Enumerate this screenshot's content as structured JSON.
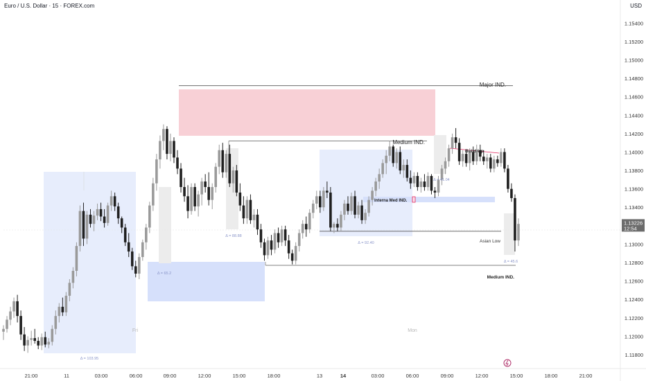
{
  "header": {
    "symbol_title": "Euro / U.S. Dollar · 15 · FOREX.com",
    "currency": "USD"
  },
  "price_badge": {
    "price": "1.13226",
    "countdown": "12:54"
  },
  "colors": {
    "bull": "#9a9a9a",
    "bear": "#202020",
    "zone_red": "#f8d0d6",
    "zone_blue": "#d6e0fb",
    "zone_blue_light": "#e7edfc",
    "zone_grey": "#ececec",
    "badge_bg": "#6b6b6b"
  },
  "chart_data": {
    "type": "candlestick",
    "x_tick_labels": [
      "21:00",
      "11",
      "03:00",
      "06:00",
      "09:00",
      "12:00",
      "15:00",
      "18:00",
      "13",
      "14",
      "03:00",
      "06:00",
      "09:00",
      "12:00",
      "15:00",
      "18:00",
      "21:00"
    ],
    "y_ticks": [
      1.154,
      1.152,
      1.15,
      1.148,
      1.146,
      1.144,
      1.142,
      1.14,
      1.138,
      1.136,
      1.134,
      1.13,
      1.128,
      1.126,
      1.124,
      1.122,
      1.12,
      1.118
    ],
    "ylim": [
      1.1174,
      1.1556
    ],
    "session_labels": [
      "Fri",
      "Mon"
    ],
    "levels": [
      {
        "name": "Major IND.",
        "price": 1.1472
      },
      {
        "name": "Medium IND.",
        "price": 1.1412
      },
      {
        "name": "Asian Low",
        "price": 1.1314
      },
      {
        "name": "Medium IND.",
        "price": 1.1277
      }
    ],
    "annotations": [
      "Interna Med IND.",
      "Build Up"
    ],
    "range_labels": [
      "Δ = 103.95",
      "Δ = 65.2",
      "Δ = 88.88",
      "Δ = 92.40",
      "Δ = 41.04",
      "Δ = 45.6"
    ],
    "candles": [
      [
        1.1205,
        1.1212,
        1.1196,
        1.1208
      ],
      [
        1.1208,
        1.1222,
        1.1204,
        1.1218
      ],
      [
        1.1218,
        1.1232,
        1.1212,
        1.1227
      ],
      [
        1.1227,
        1.1242,
        1.122,
        1.1238
      ],
      [
        1.1238,
        1.1245,
        1.1215,
        1.1222
      ],
      [
        1.1222,
        1.1228,
        1.1196,
        1.1202
      ],
      [
        1.1202,
        1.121,
        1.1184,
        1.119
      ],
      [
        1.119,
        1.12,
        1.1182,
        1.1196
      ],
      [
        1.1196,
        1.1206,
        1.119,
        1.1198
      ],
      [
        1.1198,
        1.1208,
        1.1192,
        1.1195
      ],
      [
        1.1195,
        1.1199,
        1.1186,
        1.119
      ],
      [
        1.119,
        1.1203,
        1.1185,
        1.1199
      ],
      [
        1.1199,
        1.1205,
        1.1188,
        1.1191
      ],
      [
        1.1191,
        1.1198,
        1.1187,
        1.1194
      ],
      [
        1.1194,
        1.1212,
        1.119,
        1.1208
      ],
      [
        1.1208,
        1.1228,
        1.1202,
        1.1222
      ],
      [
        1.1222,
        1.1236,
        1.1215,
        1.1232
      ],
      [
        1.1232,
        1.1242,
        1.1222,
        1.1226
      ],
      [
        1.1226,
        1.1248,
        1.1222,
        1.1244
      ],
      [
        1.1244,
        1.1262,
        1.1238,
        1.1258
      ],
      [
        1.1258,
        1.1275,
        1.1252,
        1.1271
      ],
      [
        1.1271,
        1.1302,
        1.1265,
        1.1298
      ],
      [
        1.1298,
        1.1342,
        1.1292,
        1.1336
      ],
      [
        1.1336,
        1.1345,
        1.1298,
        1.1306
      ],
      [
        1.1306,
        1.1336,
        1.13,
        1.1332
      ],
      [
        1.1332,
        1.1338,
        1.1318,
        1.1322
      ],
      [
        1.1322,
        1.1336,
        1.1314,
        1.1331
      ],
      [
        1.1331,
        1.1344,
        1.1326,
        1.1338
      ],
      [
        1.1338,
        1.1345,
        1.1325,
        1.133
      ],
      [
        1.133,
        1.1338,
        1.1318,
        1.1323
      ],
      [
        1.1323,
        1.1345,
        1.132,
        1.1342
      ],
      [
        1.1342,
        1.1358,
        1.1336,
        1.1352
      ],
      [
        1.1352,
        1.1356,
        1.1336,
        1.1341
      ],
      [
        1.1341,
        1.1345,
        1.1322,
        1.1328
      ],
      [
        1.1328,
        1.133,
        1.1312,
        1.1318
      ],
      [
        1.1318,
        1.1322,
        1.1298,
        1.1302
      ],
      [
        1.1302,
        1.1312,
        1.1286,
        1.1292
      ],
      [
        1.1292,
        1.1296,
        1.1272,
        1.1276
      ],
      [
        1.1276,
        1.1282,
        1.1264,
        1.1268
      ],
      [
        1.1268,
        1.129,
        1.1262,
        1.1286
      ],
      [
        1.1286,
        1.1305,
        1.1282,
        1.1302
      ],
      [
        1.1302,
        1.1322,
        1.1294,
        1.1318
      ],
      [
        1.1318,
        1.1346,
        1.1312,
        1.1342
      ],
      [
        1.1342,
        1.1372,
        1.1336,
        1.1366
      ],
      [
        1.1366,
        1.1398,
        1.1358,
        1.1392
      ],
      [
        1.1392,
        1.1418,
        1.1382,
        1.1412
      ],
      [
        1.1412,
        1.143,
        1.1402,
        1.1425
      ],
      [
        1.1425,
        1.1428,
        1.1392,
        1.1398
      ],
      [
        1.1398,
        1.142,
        1.139,
        1.1412
      ],
      [
        1.1412,
        1.1416,
        1.1388,
        1.1394
      ],
      [
        1.1394,
        1.1402,
        1.1376,
        1.1382
      ],
      [
        1.1382,
        1.1388,
        1.1356,
        1.1362
      ],
      [
        1.1362,
        1.1372,
        1.1346,
        1.1352
      ],
      [
        1.1352,
        1.1364,
        1.1328,
        1.1336
      ],
      [
        1.1336,
        1.1366,
        1.1332,
        1.1362
      ],
      [
        1.1362,
        1.1366,
        1.1336,
        1.1341
      ],
      [
        1.1341,
        1.1358,
        1.133,
        1.1354
      ],
      [
        1.1354,
        1.1372,
        1.1342,
        1.1368
      ],
      [
        1.1368,
        1.1376,
        1.1356,
        1.1362
      ],
      [
        1.1362,
        1.1378,
        1.1342,
        1.1348
      ],
      [
        1.1348,
        1.1366,
        1.1338,
        1.1362
      ],
      [
        1.1362,
        1.1388,
        1.1356,
        1.1384
      ],
      [
        1.1384,
        1.1408,
        1.1376,
        1.1402
      ],
      [
        1.1402,
        1.141,
        1.1372,
        1.1378
      ],
      [
        1.1378,
        1.1402,
        1.1372,
        1.1398
      ],
      [
        1.1398,
        1.1408,
        1.1362,
        1.1366
      ],
      [
        1.1366,
        1.1384,
        1.1356,
        1.138
      ],
      [
        1.138,
        1.1386,
        1.1352,
        1.1356
      ],
      [
        1.1356,
        1.1366,
        1.1336,
        1.1342
      ],
      [
        1.1342,
        1.1352,
        1.1322,
        1.1328
      ],
      [
        1.1328,
        1.1352,
        1.1322,
        1.1348
      ],
      [
        1.1348,
        1.1354,
        1.1322,
        1.1326
      ],
      [
        1.1326,
        1.1338,
        1.1318,
        1.1332
      ],
      [
        1.1332,
        1.1338,
        1.131,
        1.1316
      ],
      [
        1.1316,
        1.1322,
        1.1296,
        1.1302
      ],
      [
        1.1302,
        1.1306,
        1.1282,
        1.1288
      ],
      [
        1.1288,
        1.1308,
        1.1284,
        1.1304
      ],
      [
        1.1304,
        1.131,
        1.1288,
        1.1294
      ],
      [
        1.1294,
        1.1316,
        1.129,
        1.1312
      ],
      [
        1.1312,
        1.1318,
        1.1296,
        1.1302
      ],
      [
        1.1302,
        1.132,
        1.1298,
        1.1316
      ],
      [
        1.1316,
        1.132,
        1.1298,
        1.1304
      ],
      [
        1.1304,
        1.131,
        1.1284,
        1.129
      ],
      [
        1.129,
        1.1294,
        1.1278,
        1.1282
      ],
      [
        1.1282,
        1.1302,
        1.1278,
        1.1298
      ],
      [
        1.1298,
        1.1316,
        1.1292,
        1.1312
      ],
      [
        1.1312,
        1.1326,
        1.1306,
        1.1322
      ],
      [
        1.1322,
        1.133,
        1.1308,
        1.1316
      ],
      [
        1.1316,
        1.1338,
        1.1312,
        1.1334
      ],
      [
        1.1334,
        1.1348,
        1.1328,
        1.1344
      ],
      [
        1.1344,
        1.1358,
        1.1338,
        1.1352
      ],
      [
        1.1352,
        1.1358,
        1.1334,
        1.134
      ],
      [
        1.134,
        1.1362,
        1.1336,
        1.1358
      ],
      [
        1.1358,
        1.1368,
        1.135,
        1.1356
      ],
      [
        1.1356,
        1.1362,
        1.1314,
        1.1318
      ],
      [
        1.1318,
        1.1324,
        1.1312,
        1.1322
      ],
      [
        1.1322,
        1.1328,
        1.1314,
        1.1318
      ],
      [
        1.1318,
        1.1336,
        1.1314,
        1.1332
      ],
      [
        1.1332,
        1.1348,
        1.1326,
        1.1344
      ],
      [
        1.1344,
        1.1352,
        1.1332,
        1.1336
      ],
      [
        1.1336,
        1.1356,
        1.1332,
        1.1352
      ],
      [
        1.1352,
        1.1358,
        1.1328,
        1.1332
      ],
      [
        1.1332,
        1.1346,
        1.1328,
        1.1342
      ],
      [
        1.1342,
        1.1348,
        1.1322,
        1.1326
      ],
      [
        1.1326,
        1.1338,
        1.1322,
        1.1334
      ],
      [
        1.1334,
        1.1352,
        1.133,
        1.1348
      ],
      [
        1.1348,
        1.1362,
        1.1342,
        1.1358
      ],
      [
        1.1358,
        1.1372,
        1.1352,
        1.1368
      ],
      [
        1.1368,
        1.1382,
        1.136,
        1.1376
      ],
      [
        1.1376,
        1.1392,
        1.1372,
        1.1388
      ],
      [
        1.1388,
        1.1402,
        1.1376,
        1.1396
      ],
      [
        1.1396,
        1.1412,
        1.139,
        1.1406
      ],
      [
        1.1406,
        1.1408,
        1.1384,
        1.1388
      ],
      [
        1.1388,
        1.1404,
        1.1382,
        1.14
      ],
      [
        1.14,
        1.1406,
        1.1376,
        1.138
      ],
      [
        1.138,
        1.1392,
        1.1372,
        1.1386
      ],
      [
        1.1386,
        1.1392,
        1.1368,
        1.1372
      ],
      [
        1.1372,
        1.138,
        1.136,
        1.1366
      ],
      [
        1.1366,
        1.1378,
        1.1362,
        1.1374
      ],
      [
        1.1374,
        1.1378,
        1.1358,
        1.1362
      ],
      [
        1.1362,
        1.1372,
        1.1356,
        1.1368
      ],
      [
        1.1368,
        1.1376,
        1.1358,
        1.1362
      ],
      [
        1.1362,
        1.1378,
        1.1358,
        1.1374
      ],
      [
        1.1374,
        1.1376,
        1.1354,
        1.1358
      ],
      [
        1.1358,
        1.1362,
        1.135,
        1.1356
      ],
      [
        1.1356,
        1.1374,
        1.1352,
        1.137
      ],
      [
        1.137,
        1.1386,
        1.1364,
        1.1382
      ],
      [
        1.1382,
        1.1394,
        1.1376,
        1.139
      ],
      [
        1.139,
        1.1408,
        1.1384,
        1.1404
      ],
      [
        1.1404,
        1.142,
        1.1398,
        1.1416
      ],
      [
        1.1416,
        1.1426,
        1.1404,
        1.141
      ],
      [
        1.141,
        1.1415,
        1.1386,
        1.139
      ],
      [
        1.139,
        1.1402,
        1.1384,
        1.1398
      ],
      [
        1.1398,
        1.1402,
        1.1384,
        1.1388
      ],
      [
        1.1388,
        1.1404,
        1.138,
        1.14
      ],
      [
        1.14,
        1.1406,
        1.1386,
        1.139
      ],
      [
        1.139,
        1.1408,
        1.1386,
        1.1402
      ],
      [
        1.1402,
        1.1408,
        1.139,
        1.1395
      ],
      [
        1.1395,
        1.1402,
        1.1386,
        1.139
      ],
      [
        1.139,
        1.1398,
        1.1382,
        1.1394
      ],
      [
        1.1394,
        1.1398,
        1.1378,
        1.1382
      ],
      [
        1.1382,
        1.1396,
        1.1378,
        1.1392
      ],
      [
        1.1392,
        1.1396,
        1.1384,
        1.1388
      ],
      [
        1.1388,
        1.1404,
        1.1384,
        1.14
      ],
      [
        1.14,
        1.1404,
        1.1378,
        1.1382
      ],
      [
        1.1382,
        1.1386,
        1.1356,
        1.136
      ],
      [
        1.136,
        1.1366,
        1.1346,
        1.135
      ],
      [
        1.135,
        1.1354,
        1.1292,
        1.1304
      ],
      [
        1.1304,
        1.1328,
        1.1298,
        1.1322
      ]
    ]
  }
}
